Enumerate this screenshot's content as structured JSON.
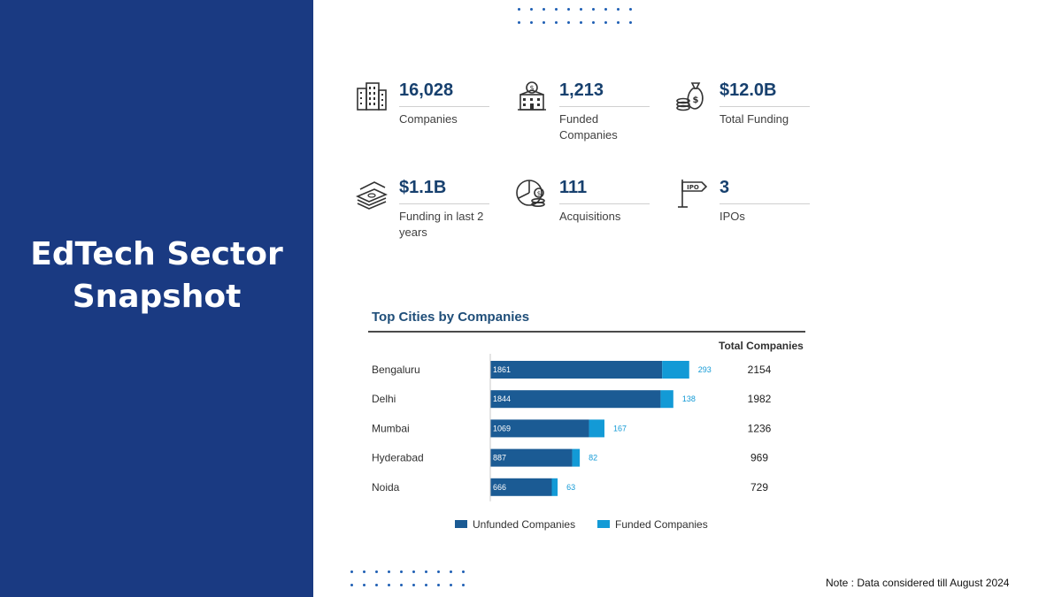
{
  "left_panel": {
    "title_line1": "EdTech Sector",
    "title_line2": "Snapshot"
  },
  "stats": [
    {
      "icon": "office-building-icon",
      "value": "16,028",
      "label": "Companies"
    },
    {
      "icon": "funded-bank-icon",
      "value": "1,213",
      "label": "Funded Companies"
    },
    {
      "icon": "money-bag-icon",
      "value": "$12.0B",
      "label": "Total Funding"
    },
    {
      "icon": "cash-stack-icon",
      "value": "$1.1B",
      "label": "Funding in last 2 years"
    },
    {
      "icon": "acquisition-pie-icon",
      "value": "111",
      "label": "Acquisitions"
    },
    {
      "icon": "ipo-sign-icon",
      "value": "3",
      "label": "IPOs"
    }
  ],
  "chart_data": {
    "type": "bar",
    "orientation": "horizontal",
    "stacked": true,
    "title": "Top Cities by Companies",
    "categories": [
      "Bengaluru",
      "Delhi",
      "Mumbai",
      "Hyderabad",
      "Noida"
    ],
    "series": [
      {
        "name": "Unfunded Companies",
        "values": [
          1861,
          1844,
          1069,
          887,
          666
        ],
        "color": "#1b5b94"
      },
      {
        "name": "Funded Companies",
        "values": [
          293,
          138,
          167,
          82,
          63
        ],
        "color": "#139ad6"
      }
    ],
    "total_header": "Total Companies",
    "totals": [
      2154,
      1982,
      1236,
      969,
      729
    ],
    "legend_position": "bottom",
    "xlim": [
      0,
      2300
    ],
    "grid": false
  },
  "note": "Note : Data considered till August 2024"
}
